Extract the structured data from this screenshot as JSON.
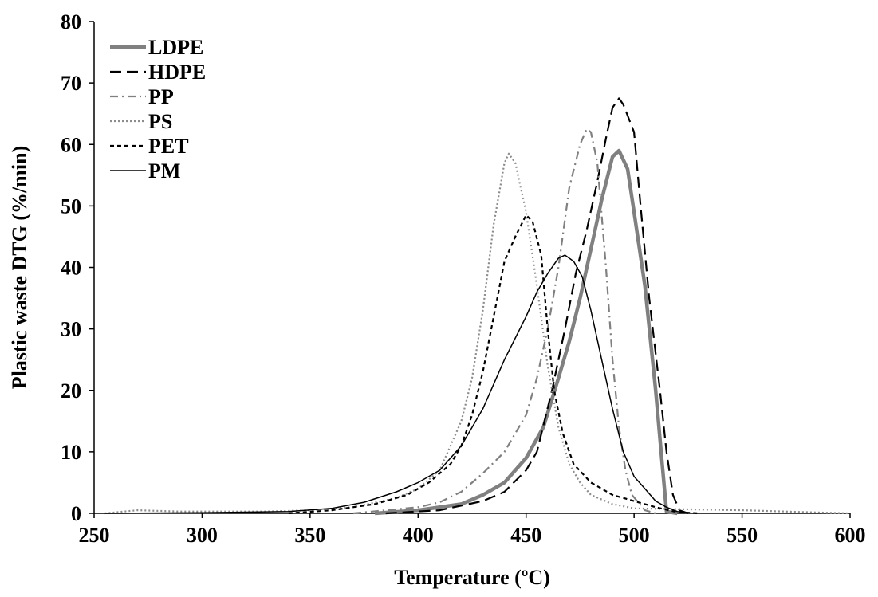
{
  "chart_data": {
    "type": "line",
    "title": "",
    "xlabel": "Temperature (ºC)",
    "ylabel": "Plastic waste DTG (%/min)",
    "xlim": [
      250,
      600
    ],
    "ylim": [
      0,
      80
    ],
    "x_ticks": [
      250,
      300,
      350,
      400,
      450,
      500,
      550,
      600
    ],
    "y_ticks": [
      0,
      10,
      20,
      30,
      40,
      50,
      60,
      70,
      80
    ],
    "grid": false,
    "legend_position": "top-left",
    "series": [
      {
        "name": "LDPE",
        "color": "#808080",
        "dash": "solid",
        "width": "thick",
        "points": [
          [
            380,
            0
          ],
          [
            400,
            0.5
          ],
          [
            420,
            1.5
          ],
          [
            430,
            3
          ],
          [
            440,
            5
          ],
          [
            450,
            9
          ],
          [
            458,
            14
          ],
          [
            465,
            22
          ],
          [
            470,
            28
          ],
          [
            475,
            35
          ],
          [
            480,
            43
          ],
          [
            485,
            51
          ],
          [
            490,
            58
          ],
          [
            493,
            59
          ],
          [
            497,
            56
          ],
          [
            500,
            49
          ],
          [
            505,
            37
          ],
          [
            510,
            20
          ],
          [
            513,
            8
          ],
          [
            515,
            0.3
          ],
          [
            520,
            0
          ]
        ]
      },
      {
        "name": "HDPE",
        "color": "#000000",
        "dash": "longdash",
        "width": "medium",
        "points": [
          [
            385,
            0
          ],
          [
            410,
            0.5
          ],
          [
            430,
            2
          ],
          [
            440,
            3.5
          ],
          [
            450,
            7
          ],
          [
            455,
            10
          ],
          [
            462,
            20
          ],
          [
            468,
            30
          ],
          [
            473,
            39
          ],
          [
            478,
            46
          ],
          [
            483,
            54
          ],
          [
            487,
            61
          ],
          [
            490,
            66
          ],
          [
            493,
            67.5
          ],
          [
            495,
            66.5
          ],
          [
            500,
            62
          ],
          [
            503,
            50
          ],
          [
            507,
            35
          ],
          [
            512,
            20
          ],
          [
            515,
            10
          ],
          [
            518,
            3
          ],
          [
            521,
            0.5
          ],
          [
            525,
            0
          ]
        ]
      },
      {
        "name": "PP",
        "color": "#808080",
        "dash": "dashdot",
        "width": "medium",
        "points": [
          [
            370,
            0
          ],
          [
            400,
            1
          ],
          [
            410,
            1.8
          ],
          [
            420,
            3.5
          ],
          [
            430,
            6.5
          ],
          [
            440,
            10
          ],
          [
            450,
            16
          ],
          [
            455,
            22
          ],
          [
            460,
            30
          ],
          [
            465,
            40
          ],
          [
            470,
            53
          ],
          [
            475,
            60
          ],
          [
            478,
            62.5
          ],
          [
            480,
            62
          ],
          [
            483,
            57
          ],
          [
            487,
            40
          ],
          [
            490,
            25
          ],
          [
            493,
            14
          ],
          [
            496,
            7
          ],
          [
            499,
            3
          ],
          [
            505,
            0.5
          ],
          [
            510,
            0
          ]
        ]
      },
      {
        "name": "PS",
        "color": "#8c8c8c",
        "dash": "dotted",
        "width": "medium",
        "points": [
          [
            255,
            0
          ],
          [
            270,
            0.5
          ],
          [
            290,
            0.3
          ],
          [
            330,
            0.3
          ],
          [
            350,
            0.5
          ],
          [
            370,
            1
          ],
          [
            390,
            2.5
          ],
          [
            400,
            4
          ],
          [
            410,
            7
          ],
          [
            420,
            15
          ],
          [
            425,
            22
          ],
          [
            430,
            33
          ],
          [
            435,
            47
          ],
          [
            440,
            57
          ],
          [
            442,
            58.5
          ],
          [
            445,
            57
          ],
          [
            450,
            49
          ],
          [
            455,
            37
          ],
          [
            460,
            24
          ],
          [
            465,
            14
          ],
          [
            470,
            8
          ],
          [
            475,
            5
          ],
          [
            480,
            3
          ],
          [
            490,
            1.5
          ],
          [
            500,
            0.8
          ],
          [
            550,
            0.5
          ],
          [
            580,
            0.2
          ],
          [
            600,
            0
          ]
        ]
      },
      {
        "name": "PET",
        "color": "#000000",
        "dash": "shortdash",
        "width": "medium",
        "points": [
          [
            340,
            0
          ],
          [
            360,
            0.5
          ],
          [
            380,
            1.5
          ],
          [
            395,
            3
          ],
          [
            405,
            5
          ],
          [
            415,
            8
          ],
          [
            420,
            11
          ],
          [
            425,
            16
          ],
          [
            430,
            23
          ],
          [
            435,
            32
          ],
          [
            440,
            41
          ],
          [
            445,
            45
          ],
          [
            450,
            48.5
          ],
          [
            453,
            47.5
          ],
          [
            457,
            42
          ],
          [
            460,
            30
          ],
          [
            463,
            20
          ],
          [
            467,
            13
          ],
          [
            472,
            8
          ],
          [
            480,
            5
          ],
          [
            490,
            3
          ],
          [
            500,
            2
          ],
          [
            510,
            1
          ],
          [
            520,
            0.2
          ],
          [
            530,
            0
          ]
        ]
      },
      {
        "name": "PM",
        "color": "#000000",
        "dash": "solid",
        "width": "thin",
        "points": [
          [
            255,
            0
          ],
          [
            300,
            0.1
          ],
          [
            340,
            0.3
          ],
          [
            360,
            0.8
          ],
          [
            375,
            1.8
          ],
          [
            390,
            3.5
          ],
          [
            400,
            5
          ],
          [
            410,
            7
          ],
          [
            420,
            11
          ],
          [
            430,
            17
          ],
          [
            440,
            25
          ],
          [
            450,
            32
          ],
          [
            455,
            36
          ],
          [
            460,
            39
          ],
          [
            465,
            41.5
          ],
          [
            468,
            42
          ],
          [
            472,
            41
          ],
          [
            476,
            38.5
          ],
          [
            480,
            33
          ],
          [
            485,
            25
          ],
          [
            490,
            17
          ],
          [
            495,
            10
          ],
          [
            500,
            6
          ],
          [
            505,
            4
          ],
          [
            510,
            2
          ],
          [
            515,
            1
          ],
          [
            520,
            0.3
          ],
          [
            525,
            0
          ]
        ]
      }
    ]
  }
}
